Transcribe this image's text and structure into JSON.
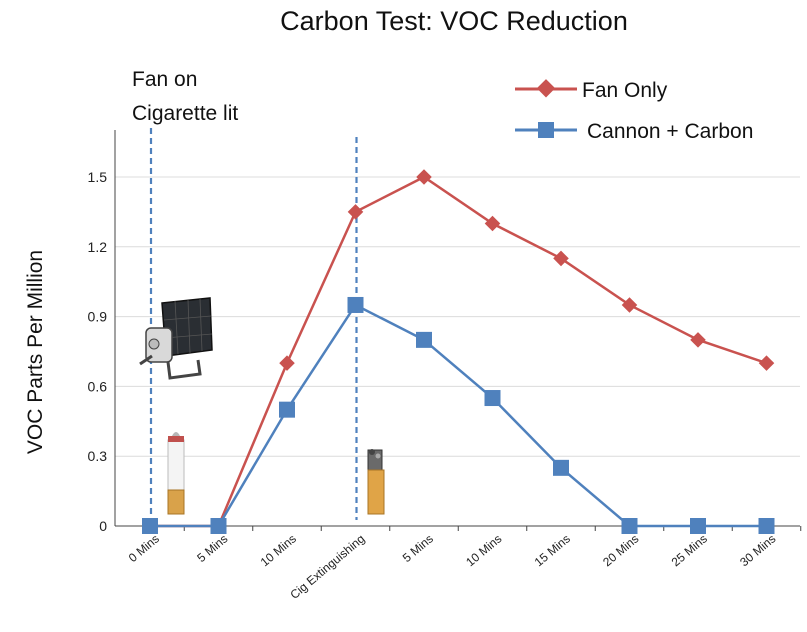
{
  "chart_data": {
    "type": "line",
    "title": "Carbon Test: VOC Reduction",
    "xlabel": "",
    "ylabel": "VOC Parts Per Million",
    "categories": [
      "0 Mins",
      "5 Mins",
      "10 Mins",
      "Cig Extinguishing",
      "5 Mins",
      "10 Mins",
      "15 Mins",
      "20 Mins",
      "25 Mins",
      "30 Mins"
    ],
    "ylim": [
      0,
      1.5
    ],
    "yticks": [
      "0",
      "0.3",
      "0.6",
      "0.9",
      "1.2",
      "1.5"
    ],
    "grid": true,
    "legend_position": "top-right",
    "series": [
      {
        "name": "Fan Only",
        "color": "#c9524f",
        "marker": "diamond",
        "values": [
          0,
          0,
          0.7,
          1.35,
          1.5,
          1.3,
          1.15,
          0.95,
          0.8,
          0.7
        ]
      },
      {
        "name": "Cannon + Carbon",
        "color": "#4f81bd",
        "marker": "square",
        "values": [
          0,
          0,
          0.5,
          0.95,
          0.8,
          0.55,
          0.25,
          0,
          0,
          0
        ]
      }
    ],
    "annotations": [
      {
        "lines": [
          "Fan on",
          "Cigarette lit"
        ],
        "at_category": 0
      },
      {
        "lines": [],
        "at_category": 3
      }
    ],
    "icons": [
      "solar-panel-fan-icon",
      "lit-cigarette-icon",
      "extinguished-cigarette-icon"
    ]
  }
}
